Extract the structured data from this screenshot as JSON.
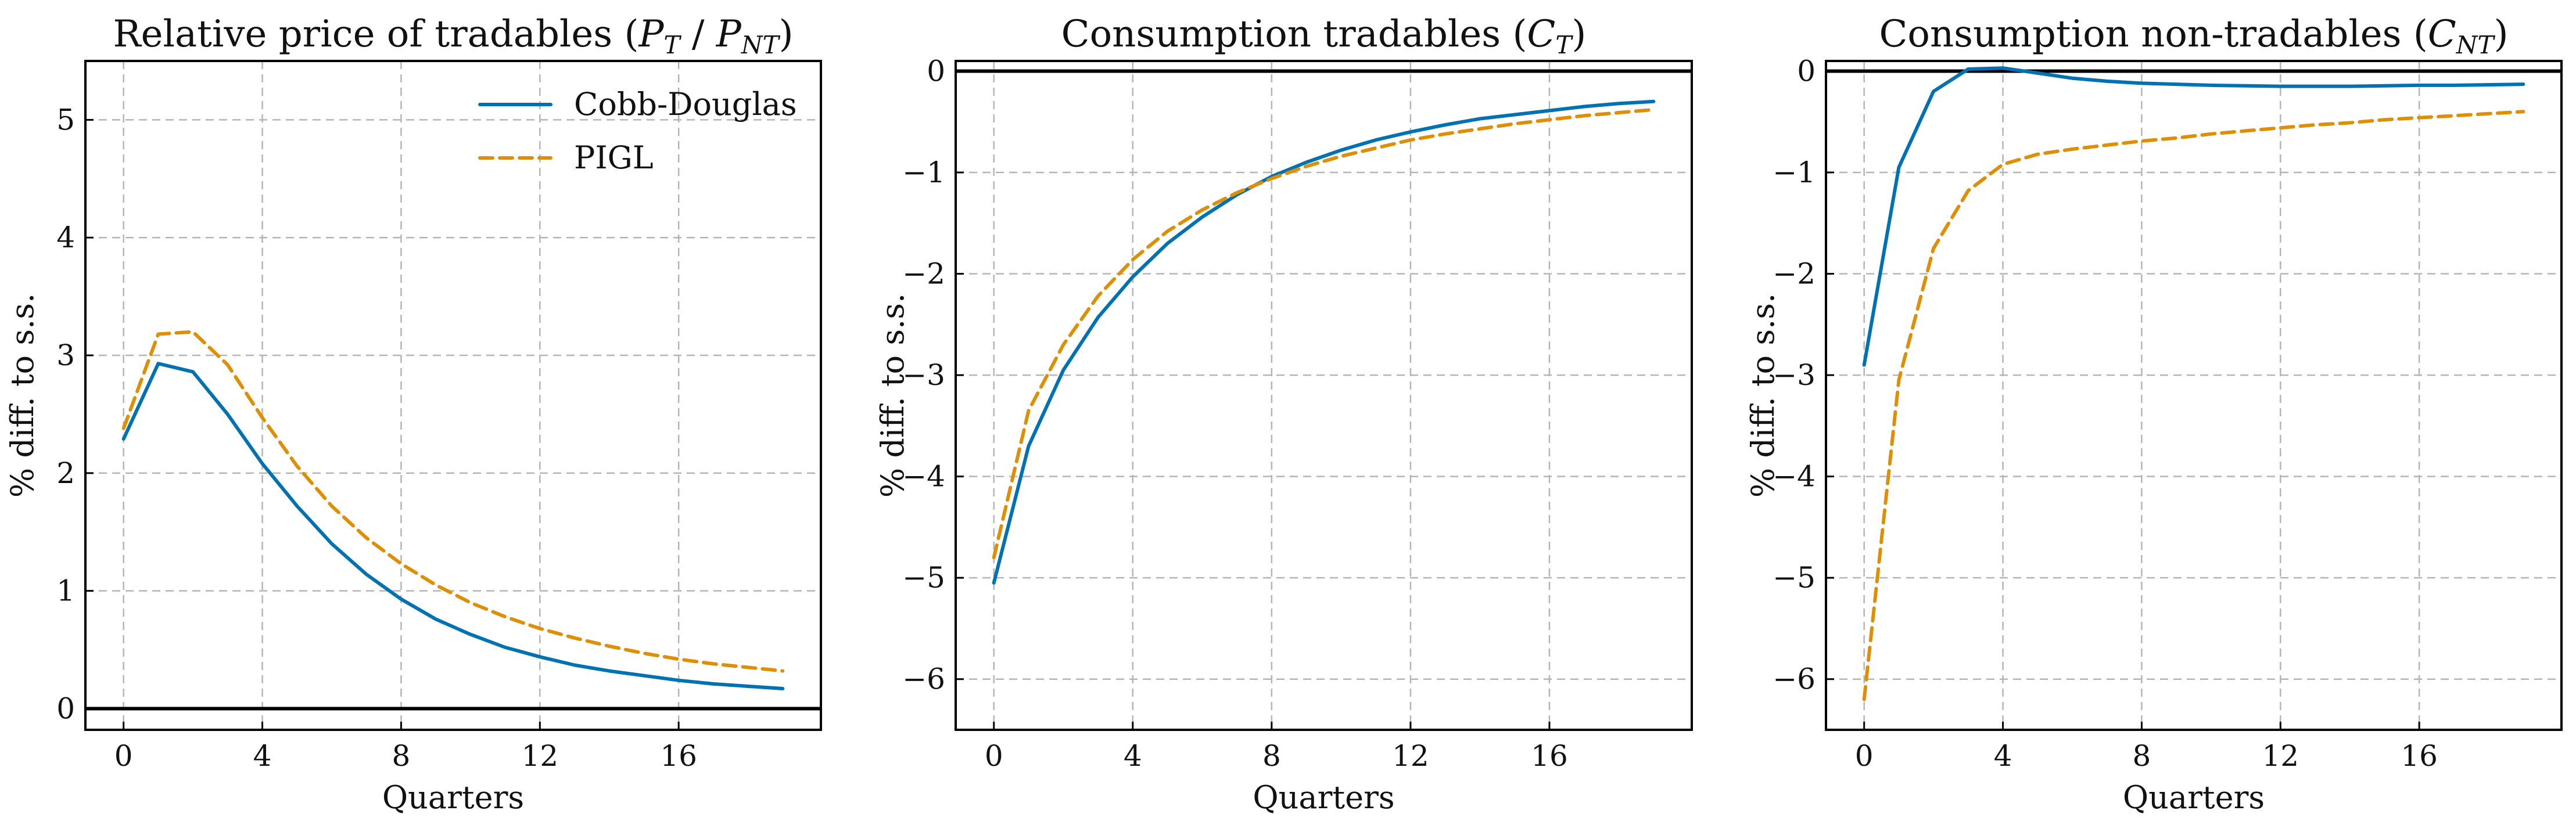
{
  "colors": {
    "cobb_douglas": "#0072b2",
    "pigl": "#de8f05"
  },
  "legend": [
    {
      "label": "Cobb-Douglas",
      "style": "solid",
      "color": "#0072b2"
    },
    {
      "label": "PIGL",
      "style": "dashed",
      "color": "#de8f05"
    }
  ],
  "chart_data": [
    {
      "type": "line",
      "title": "Relative price of tradables (P_T / P_NT)",
      "title_parts": {
        "main": "Relative price of tradables (",
        "var1": "P",
        "sub1": "T",
        "sep": " / ",
        "var2": "P",
        "sub2": "NT",
        "close": ")"
      },
      "xlabel": "Quarters",
      "ylabel": "% diff. to s.s.",
      "xlim": [
        -1.1,
        20.1
      ],
      "ylim": [
        -0.18,
        5.5
      ],
      "xticks": [
        0,
        4,
        8,
        12,
        16
      ],
      "yticks": [
        0,
        1,
        2,
        3,
        4,
        5
      ],
      "grid": true,
      "zero_line": 0,
      "legend_position": "upper-right",
      "x": [
        0,
        1,
        2,
        3,
        4,
        5,
        6,
        7,
        8,
        9,
        10,
        11,
        12,
        13,
        14,
        15,
        16,
        17,
        18,
        19
      ],
      "series": [
        {
          "name": "Cobb-Douglas",
          "style": "solid",
          "values": [
            2.29,
            2.93,
            2.86,
            2.5,
            2.08,
            1.72,
            1.4,
            1.14,
            0.93,
            0.76,
            0.63,
            0.52,
            0.44,
            0.37,
            0.32,
            0.28,
            0.24,
            0.21,
            0.19,
            0.17
          ]
        },
        {
          "name": "PIGL",
          "style": "dashed",
          "values": [
            2.38,
            3.18,
            3.2,
            2.92,
            2.47,
            2.06,
            1.72,
            1.45,
            1.23,
            1.05,
            0.9,
            0.78,
            0.68,
            0.6,
            0.53,
            0.47,
            0.42,
            0.38,
            0.35,
            0.32
          ]
        }
      ]
    },
    {
      "type": "line",
      "title": "Consumption tradables (C_T)",
      "title_parts": {
        "main": "Consumption tradables (",
        "var1": "C",
        "sub1": "T",
        "close": ")"
      },
      "xlabel": "Quarters",
      "ylabel": "% diff. to s.s.",
      "xlim": [
        -1.1,
        20.1
      ],
      "ylim": [
        -6.5,
        0.1
      ],
      "xticks": [
        0,
        4,
        8,
        12,
        16
      ],
      "yticks": [
        0,
        -1,
        -2,
        -3,
        -4,
        -5,
        -6
      ],
      "grid": true,
      "zero_line": 0,
      "x": [
        0,
        1,
        2,
        3,
        4,
        5,
        6,
        7,
        8,
        9,
        10,
        11,
        12,
        13,
        14,
        15,
        16,
        17,
        18,
        19
      ],
      "series": [
        {
          "name": "Cobb-Douglas",
          "style": "solid",
          "values": [
            -5.05,
            -3.7,
            -2.95,
            -2.43,
            -2.03,
            -1.7,
            -1.44,
            -1.22,
            -1.04,
            -0.9,
            -0.78,
            -0.68,
            -0.6,
            -0.53,
            -0.47,
            -0.43,
            -0.39,
            -0.35,
            -0.32,
            -0.3
          ]
        },
        {
          "name": "PIGL",
          "style": "dashed",
          "values": [
            -4.8,
            -3.35,
            -2.7,
            -2.22,
            -1.86,
            -1.58,
            -1.37,
            -1.2,
            -1.06,
            -0.94,
            -0.84,
            -0.76,
            -0.68,
            -0.62,
            -0.57,
            -0.52,
            -0.48,
            -0.44,
            -0.41,
            -0.38
          ]
        }
      ]
    },
    {
      "type": "line",
      "title": "Consumption non-tradables (C_NT)",
      "title_parts": {
        "main": "Consumption non-tradables (",
        "var1": "C",
        "sub1": "NT",
        "close": ")"
      },
      "xlabel": "Quarters",
      "ylabel": "% diff. to s.s.",
      "xlim": [
        -1.1,
        20.1
      ],
      "ylim": [
        -6.5,
        0.1
      ],
      "xticks": [
        0,
        4,
        8,
        12,
        16
      ],
      "yticks": [
        0,
        -1,
        -2,
        -3,
        -4,
        -5,
        -6
      ],
      "grid": true,
      "zero_line": 0,
      "x": [
        0,
        1,
        2,
        3,
        4,
        5,
        6,
        7,
        8,
        9,
        10,
        11,
        12,
        13,
        14,
        15,
        16,
        17,
        18,
        19
      ],
      "series": [
        {
          "name": "Cobb-Douglas",
          "style": "solid",
          "values": [
            -2.9,
            -0.95,
            -0.2,
            0.02,
            0.03,
            -0.02,
            -0.07,
            -0.1,
            -0.12,
            -0.13,
            -0.14,
            -0.145,
            -0.15,
            -0.15,
            -0.15,
            -0.145,
            -0.14,
            -0.14,
            -0.135,
            -0.13
          ]
        },
        {
          "name": "PIGL",
          "style": "dashed",
          "values": [
            -6.2,
            -3.05,
            -1.75,
            -1.18,
            -0.92,
            -0.82,
            -0.77,
            -0.73,
            -0.69,
            -0.66,
            -0.62,
            -0.59,
            -0.56,
            -0.53,
            -0.51,
            -0.48,
            -0.46,
            -0.44,
            -0.42,
            -0.4
          ]
        }
      ]
    }
  ]
}
